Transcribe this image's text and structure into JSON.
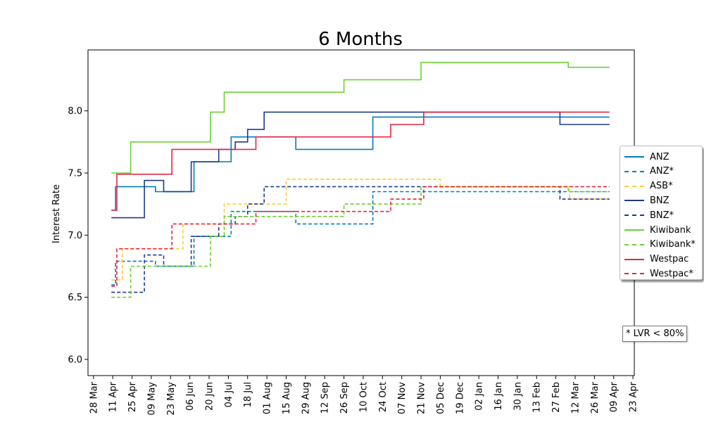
{
  "chart_data": {
    "type": "line",
    "title": "6 Months",
    "ylabel": "Interest Rate",
    "xlabel": "",
    "ylim": [
      5.87,
      8.49
    ],
    "xlim": [
      "2023-03-24",
      "2024-04-24"
    ],
    "yticks": [
      "6.0",
      "6.5",
      "7.0",
      "7.5",
      "8.0"
    ],
    "xticks": [
      "28 Mar",
      "11 Apr",
      "25 Apr",
      "09 May",
      "23 May",
      "06 Jun",
      "20 Jun",
      "04 Jul",
      "18 Jul",
      "01 Aug",
      "15 Aug",
      "29 Aug",
      "12 Sep",
      "26 Sep",
      "10 Oct",
      "24 Oct",
      "07 Nov",
      "21 Nov",
      "05 Dec",
      "19 Dec",
      "02 Jan",
      "16 Jan",
      "30 Jan",
      "13 Feb",
      "27 Feb",
      "12 Mar",
      "26 Mar",
      "09 Apr",
      "23 Apr"
    ],
    "xtick_dates": [
      "2023-03-28",
      "2023-04-11",
      "2023-04-25",
      "2023-05-09",
      "2023-05-23",
      "2023-06-06",
      "2023-06-20",
      "2023-07-04",
      "2023-07-18",
      "2023-08-01",
      "2023-08-15",
      "2023-08-29",
      "2023-09-12",
      "2023-09-26",
      "2023-10-10",
      "2023-10-24",
      "2023-11-07",
      "2023-11-21",
      "2023-12-05",
      "2023-12-19",
      "2024-01-02",
      "2024-01-16",
      "2024-01-30",
      "2024-02-13",
      "2024-02-27",
      "2024-03-12",
      "2024-03-26",
      "2024-04-09",
      "2024-04-23"
    ],
    "grid": false,
    "legend_position": "right",
    "series": [
      {
        "name": "ANZ",
        "color": "#007dba",
        "dash": "solid",
        "points": [
          [
            "2023-04-10",
            7.2
          ],
          [
            "2023-04-13",
            7.39
          ],
          [
            "2023-05-12",
            7.35
          ],
          [
            "2023-06-09",
            7.59
          ],
          [
            "2023-07-06",
            7.79
          ],
          [
            "2023-08-22",
            7.69
          ],
          [
            "2023-10-17",
            7.95
          ],
          [
            "2024-04-06",
            7.95
          ]
        ]
      },
      {
        "name": "ANZ*",
        "color": "#007dba",
        "dash": "dashed",
        "points": [
          [
            "2023-04-10",
            6.6
          ],
          [
            "2023-04-13",
            6.79
          ],
          [
            "2023-05-12",
            6.75
          ],
          [
            "2023-06-09",
            6.99
          ],
          [
            "2023-07-06",
            7.19
          ],
          [
            "2023-08-22",
            7.09
          ],
          [
            "2023-10-17",
            7.35
          ],
          [
            "2024-04-06",
            7.35
          ]
        ]
      },
      {
        "name": "ASB*",
        "color": "#ffcc33",
        "dash": "dashed",
        "points": [
          [
            "2023-04-10",
            6.64
          ],
          [
            "2023-04-18",
            6.89
          ],
          [
            "2023-06-01",
            7.09
          ],
          [
            "2023-07-01",
            7.25
          ],
          [
            "2023-08-15",
            7.45
          ],
          [
            "2023-12-05",
            7.39
          ],
          [
            "2024-03-08",
            7.29
          ],
          [
            "2024-04-06",
            7.29
          ]
        ]
      },
      {
        "name": "BNZ",
        "color": "#1f3a8a",
        "dash": "solid",
        "points": [
          [
            "2023-04-10",
            7.14
          ],
          [
            "2023-05-04",
            7.44
          ],
          [
            "2023-05-18",
            7.35
          ],
          [
            "2023-06-07",
            7.59
          ],
          [
            "2023-06-27",
            7.69
          ],
          [
            "2023-07-09",
            7.75
          ],
          [
            "2023-07-18",
            7.85
          ],
          [
            "2023-07-30",
            7.99
          ],
          [
            "2024-03-01",
            7.89
          ],
          [
            "2024-04-06",
            7.89
          ]
        ]
      },
      {
        "name": "BNZ*",
        "color": "#1f3a8a",
        "dash": "dashed",
        "points": [
          [
            "2023-04-10",
            6.54
          ],
          [
            "2023-05-04",
            6.84
          ],
          [
            "2023-05-18",
            6.75
          ],
          [
            "2023-06-07",
            6.99
          ],
          [
            "2023-06-27",
            7.09
          ],
          [
            "2023-07-09",
            7.15
          ],
          [
            "2023-07-18",
            7.25
          ],
          [
            "2023-07-30",
            7.39
          ],
          [
            "2024-03-01",
            7.29
          ],
          [
            "2024-04-06",
            7.29
          ]
        ]
      },
      {
        "name": "Kiwibank",
        "color": "#6ad134",
        "dash": "solid",
        "points": [
          [
            "2023-04-10",
            7.5
          ],
          [
            "2023-04-24",
            7.75
          ],
          [
            "2023-06-21",
            7.99
          ],
          [
            "2023-07-01",
            8.15
          ],
          [
            "2023-09-26",
            8.25
          ],
          [
            "2023-11-21",
            8.39
          ],
          [
            "2024-03-07",
            8.35
          ],
          [
            "2024-04-06",
            8.35
          ]
        ]
      },
      {
        "name": "Kiwibank*",
        "color": "#6ad134",
        "dash": "dashed",
        "points": [
          [
            "2023-04-10",
            6.5
          ],
          [
            "2023-04-24",
            6.75
          ],
          [
            "2023-06-21",
            6.99
          ],
          [
            "2023-07-01",
            7.15
          ],
          [
            "2023-09-26",
            7.25
          ],
          [
            "2023-11-21",
            7.39
          ],
          [
            "2024-03-07",
            7.35
          ],
          [
            "2024-04-06",
            7.35
          ]
        ]
      },
      {
        "name": "Westpac",
        "color": "#e7243f",
        "dash": "solid",
        "points": [
          [
            "2023-04-10",
            7.2
          ],
          [
            "2023-04-14",
            7.49
          ],
          [
            "2023-05-24",
            7.69
          ],
          [
            "2023-07-24",
            7.79
          ],
          [
            "2023-10-30",
            7.89
          ],
          [
            "2023-11-23",
            7.99
          ],
          [
            "2024-04-06",
            7.99
          ]
        ]
      },
      {
        "name": "Westpac*",
        "color": "#e7243f",
        "dash": "dashed",
        "points": [
          [
            "2023-04-10",
            6.59
          ],
          [
            "2023-04-14",
            6.89
          ],
          [
            "2023-05-24",
            7.09
          ],
          [
            "2023-07-24",
            7.19
          ],
          [
            "2023-10-30",
            7.29
          ],
          [
            "2023-11-23",
            7.39
          ],
          [
            "2024-04-06",
            7.39
          ]
        ]
      }
    ],
    "annotation": "* LVR < 80%"
  }
}
